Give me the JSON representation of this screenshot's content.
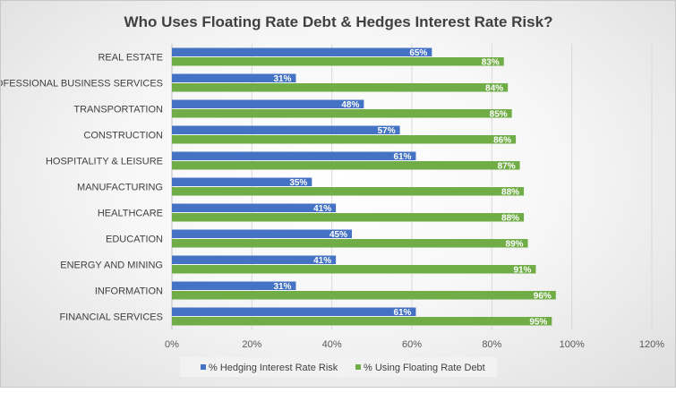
{
  "chart_data": {
    "type": "bar",
    "orientation": "horizontal",
    "title": "Who Uses Floating Rate Debt & Hedges Interest Rate Risk?",
    "xlabel": "",
    "ylabel": "",
    "xlim": [
      0,
      120
    ],
    "xticks": [
      "0%",
      "20%",
      "40%",
      "60%",
      "80%",
      "100%",
      "120%"
    ],
    "grid": true,
    "legend_position": "bottom",
    "categories": [
      "REAL ESTATE",
      "PROFESSIONAL BUSINESS SERVICES",
      "TRANSPORTATION",
      "CONSTRUCTION",
      "HOSPITALITY & LEISURE",
      "MANUFACTURING",
      "HEALTHCARE",
      "EDUCATION",
      "ENERGY AND MINING",
      "INFORMATION",
      "FINANCIAL SERVICES"
    ],
    "series": [
      {
        "name": "% Hedging Interest Rate Risk",
        "color": "#4472c4",
        "values": [
          65,
          31,
          48,
          57,
          61,
          35,
          41,
          45,
          41,
          31,
          61
        ],
        "labels": [
          "65%",
          "31%",
          "48%",
          "57%",
          "61%",
          "35%",
          "41%",
          "45%",
          "41%",
          "31%",
          "61%"
        ]
      },
      {
        "name": "% Using Floating Rate Debt",
        "color": "#70ad47",
        "values": [
          83,
          84,
          85,
          86,
          87,
          88,
          88,
          89,
          91,
          96,
          95
        ],
        "labels": [
          "83%",
          "84%",
          "85%",
          "86%",
          "87%",
          "88%",
          "88%",
          "89%",
          "91%",
          "96%",
          "95%"
        ]
      }
    ]
  }
}
